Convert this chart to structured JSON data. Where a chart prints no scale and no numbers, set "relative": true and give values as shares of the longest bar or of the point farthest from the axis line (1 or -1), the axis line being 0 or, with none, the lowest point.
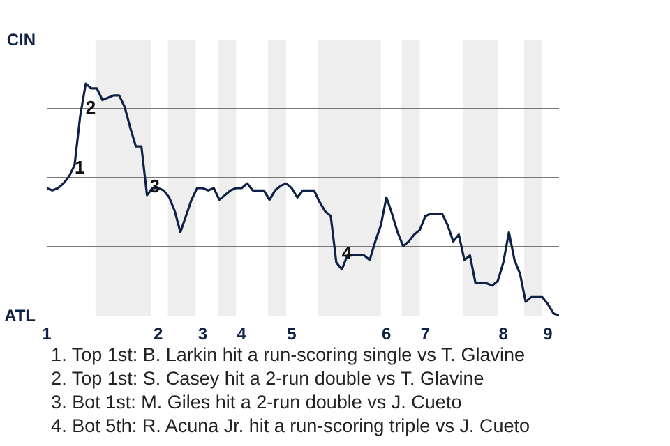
{
  "chart_data": {
    "type": "line",
    "relative": true,
    "categories": [
      "1",
      null,
      null,
      null,
      null,
      null,
      null,
      null,
      null,
      null,
      null,
      null,
      null,
      null,
      null,
      null,
      null,
      null,
      null,
      null,
      "2",
      null,
      null,
      null,
      null,
      null,
      null,
      null,
      "3",
      null,
      null,
      null,
      null,
      null,
      null,
      "4",
      null,
      null,
      null,
      null,
      null,
      null,
      null,
      null,
      "5",
      null,
      null,
      null,
      null,
      null,
      null,
      null,
      null,
      null,
      null,
      null,
      null,
      null,
      null,
      null,
      null,
      "6",
      null,
      null,
      null,
      null,
      null,
      null,
      "7",
      null,
      null,
      null,
      null,
      null,
      null,
      null,
      null,
      null,
      null,
      null,
      null,
      null,
      "8",
      null,
      null,
      null,
      null,
      null,
      null,
      null,
      "9",
      null,
      null
    ],
    "series": [
      {
        "color": "#0f2147",
        "values": [
          0.55,
          0.54,
          0.55,
          0.57,
          0.6,
          0.65,
          0.86,
          1,
          0.98,
          0.98,
          0.93,
          0.94,
          0.95,
          0.95,
          0.9,
          0.81,
          0.73,
          0.73,
          0.52,
          0.55,
          0.55,
          0.54,
          0.51,
          0.45,
          0.36,
          0.43,
          0.5,
          0.55,
          0.55,
          0.54,
          0.55,
          0.5,
          0.52,
          0.54,
          0.55,
          0.55,
          0.57,
          0.54,
          0.54,
          0.54,
          0.5,
          0.54,
          0.56,
          0.57,
          0.55,
          0.51,
          0.54,
          0.54,
          0.54,
          0.49,
          0.45,
          0.43,
          0.23,
          0.2,
          0.26,
          0.26,
          0.26,
          0.26,
          0.24,
          0.32,
          0.39,
          0.51,
          0.44,
          0.36,
          0.3,
          0.32,
          0.35,
          0.37,
          0.43,
          0.44,
          0.44,
          0.44,
          0.39,
          0.32,
          0.35,
          0.24,
          0.26,
          0.14,
          0.14,
          0.14,
          0.13,
          0.15,
          0.23,
          0.36,
          0.24,
          0.18,
          0.06,
          0.08,
          0.08,
          0.08,
          0.05,
          0.01,
          0
        ]
      }
    ],
    "line_style": "solid",
    "annotations": [
      "CIN",
      "ATL",
      "1",
      "2",
      "3",
      "4",
      "1. Top 1st: B. Larkin hit a run-scoring single vs T. Glavine",
      "2. Top 1st: S. Casey hit a 2-run double vs T. Glavine",
      "3. Bot 1st: M. Giles hit a 2-run double vs J. Cueto",
      "4. Bot 5th: R. Acuna Jr. hit a run-scoring triple vs J. Cueto"
    ]
  }
}
